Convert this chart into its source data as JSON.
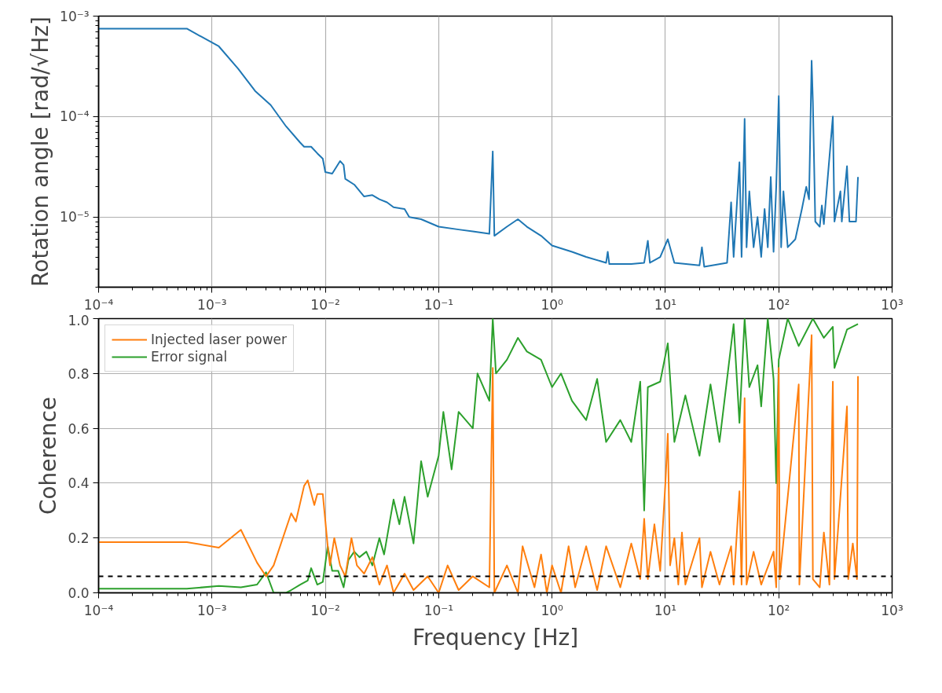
{
  "chart_data": [
    {
      "type": "line",
      "ylabel": "Rotation angle [rad/√Hz]",
      "log": "xy",
      "grid": true,
      "legend": false,
      "line_style": "solid",
      "xlim": [
        0.0001,
        1000
      ],
      "ylim": [
        2e-06,
        0.001
      ],
      "xticks": [
        {
          "value": 0.0001,
          "label": "10⁻⁴"
        },
        {
          "value": 0.001,
          "label": "10⁻³"
        },
        {
          "value": 0.01,
          "label": "10⁻²"
        },
        {
          "value": 0.1,
          "label": "10⁻¹"
        },
        {
          "value": 1,
          "label": "10⁰"
        },
        {
          "value": 10,
          "label": "10¹"
        },
        {
          "value": 100,
          "label": "10²"
        },
        {
          "value": 1000,
          "label": "10³"
        }
      ],
      "yticks": [
        {
          "value": 1e-05,
          "label": "10⁻⁵"
        },
        {
          "value": 0.0001,
          "label": "10⁻⁴"
        },
        {
          "value": 0.001,
          "label": "10⁻³"
        }
      ],
      "series": [
        {
          "color": "#1f77b4",
          "x": [
            0.0001,
            0.0006,
            0.00115,
            0.0017,
            0.0024,
            0.0033,
            0.0045,
            0.006,
            0.0065,
            0.0075,
            0.0085,
            0.0095,
            0.01,
            0.0115,
            0.0135,
            0.0145,
            0.015,
            0.018,
            0.022,
            0.026,
            0.03,
            0.035,
            0.04,
            0.05,
            0.055,
            0.07,
            0.1,
            0.15,
            0.2,
            0.28,
            0.3,
            0.31,
            0.4,
            0.5,
            0.6,
            0.8,
            1,
            1.5,
            2,
            3,
            3.1,
            3.2,
            5,
            6.5,
            7,
            7.3,
            9,
            10.5,
            12,
            20,
            21,
            22,
            35,
            38,
            40,
            45,
            47,
            50,
            52,
            55,
            60,
            65,
            70,
            75,
            80,
            85,
            90,
            95,
            100,
            105,
            110,
            120,
            140,
            160,
            175,
            185,
            195,
            200,
            210,
            230,
            240,
            250,
            300,
            310,
            350,
            360,
            400,
            420,
            480,
            500
          ],
          "values": [
            0.00075,
            0.00075,
            0.0005,
            0.0003,
            0.00018,
            0.00013,
            8e-05,
            5.5e-05,
            5e-05,
            5e-05,
            4.3e-05,
            3.8e-05,
            2.8e-05,
            2.7e-05,
            3.6e-05,
            3.3e-05,
            2.4e-05,
            2.1e-05,
            1.6e-05,
            1.65e-05,
            1.5e-05,
            1.4e-05,
            1.25e-05,
            1.2e-05,
            1e-05,
            9.5e-06,
            8e-06,
            7.5e-06,
            7.2e-06,
            6.8e-06,
            4.5e-05,
            6.5e-06,
            8e-06,
            9.5e-06,
            8e-06,
            6.5e-06,
            5.2e-06,
            4.5e-06,
            4e-06,
            3.5e-06,
            4.5e-06,
            3.4e-06,
            3.4e-06,
            3.5e-06,
            5.8e-06,
            3.5e-06,
            4e-06,
            6e-06,
            3.5e-06,
            3.3e-06,
            5e-06,
            3.2e-06,
            3.5e-06,
            1.4e-05,
            4e-06,
            3.5e-05,
            4e-06,
            9.5e-05,
            5e-06,
            1.8e-05,
            5e-06,
            1e-05,
            4e-06,
            1.2e-05,
            5e-06,
            2.5e-05,
            4.5e-06,
            2e-05,
            0.00016,
            5e-06,
            1.8e-05,
            5e-06,
            6e-06,
            1.2e-05,
            2e-05,
            1.5e-05,
            0.00036,
            0.00014,
            9e-06,
            8e-06,
            1.3e-05,
            8.5e-06,
            0.0001,
            9e-06,
            1.8e-05,
            9e-06,
            3.2e-05,
            9e-06,
            9e-06,
            2.5e-05
          ]
        }
      ]
    },
    {
      "type": "line",
      "xlabel": "Frequency [Hz]",
      "ylabel": "Coherence",
      "log": "x",
      "grid": true,
      "legend": "top left",
      "line_style": "solid",
      "xlim": [
        0.0001,
        1000
      ],
      "ylim": [
        0,
        1
      ],
      "xticks": [
        {
          "value": 0.0001,
          "label": "10⁻⁴"
        },
        {
          "value": 0.001,
          "label": "10⁻³"
        },
        {
          "value": 0.01,
          "label": "10⁻²"
        },
        {
          "value": 0.1,
          "label": "10⁻¹"
        },
        {
          "value": 1,
          "label": "10⁰"
        },
        {
          "value": 10,
          "label": "10¹"
        },
        {
          "value": 100,
          "label": "10²"
        },
        {
          "value": 1000,
          "label": "10³"
        }
      ],
      "yticks": [
        {
          "value": 0,
          "label": "0.0"
        },
        {
          "value": 0.2,
          "label": "0.2"
        },
        {
          "value": 0.4,
          "label": "0.4"
        },
        {
          "value": 0.6,
          "label": "0.6"
        },
        {
          "value": 0.8,
          "label": "0.8"
        },
        {
          "value": 1,
          "label": "1.0"
        }
      ],
      "ref_lines": [
        {
          "axis": "y",
          "value": 0.06,
          "color": "#000000",
          "line_style": "dashed"
        }
      ],
      "series": [
        {
          "name": "Injected laser power",
          "color": "#ff7f0e",
          "x": [
            0.0001,
            0.0006,
            0.00115,
            0.0018,
            0.0025,
            0.003,
            0.0035,
            0.005,
            0.0055,
            0.0065,
            0.007,
            0.008,
            0.0085,
            0.0095,
            0.0105,
            0.011,
            0.012,
            0.0135,
            0.015,
            0.017,
            0.019,
            0.022,
            0.026,
            0.03,
            0.035,
            0.04,
            0.05,
            0.06,
            0.08,
            0.1,
            0.12,
            0.15,
            0.2,
            0.28,
            0.3,
            0.31,
            0.4,
            0.5,
            0.55,
            0.7,
            0.8,
            0.9,
            1,
            1.2,
            1.4,
            1.6,
            2,
            2.5,
            3,
            4,
            5,
            6,
            6.5,
            7,
            8,
            9,
            10,
            10.5,
            11,
            12,
            13,
            14,
            15,
            20,
            21,
            25,
            30,
            38,
            40,
            45,
            47,
            50,
            52,
            60,
            70,
            90,
            95,
            100,
            102,
            150,
            152,
            195,
            200,
            230,
            250,
            280,
            300,
            310,
            400,
            410,
            450,
            490,
            500
          ],
          "values": [
            0.185,
            0.185,
            0.165,
            0.23,
            0.11,
            0.06,
            0.1,
            0.29,
            0.26,
            0.39,
            0.41,
            0.32,
            0.36,
            0.36,
            0.17,
            0.1,
            0.2,
            0.1,
            0.06,
            0.2,
            0.1,
            0.07,
            0.13,
            0.03,
            0.1,
            0.0,
            0.07,
            0.01,
            0.06,
            0.0,
            0.1,
            0.01,
            0.06,
            0.02,
            0.82,
            0.0,
            0.1,
            0.0,
            0.17,
            0.02,
            0.14,
            0.0,
            0.1,
            0.0,
            0.17,
            0.02,
            0.17,
            0.01,
            0.17,
            0.02,
            0.18,
            0.05,
            0.27,
            0.05,
            0.25,
            0.08,
            0.4,
            0.58,
            0.1,
            0.2,
            0.03,
            0.22,
            0.03,
            0.2,
            0.02,
            0.15,
            0.03,
            0.17,
            0.03,
            0.37,
            0.03,
            0.71,
            0.03,
            0.15,
            0.03,
            0.15,
            0.02,
            0.82,
            0.05,
            0.76,
            0.03,
            0.94,
            0.05,
            0.02,
            0.22,
            0.03,
            0.77,
            0.05,
            0.68,
            0.05,
            0.18,
            0.05,
            0.79
          ]
        },
        {
          "name": "Error signal",
          "color": "#2ca02c",
          "x": [
            0.0001,
            0.0006,
            0.00115,
            0.0018,
            0.0025,
            0.003,
            0.0035,
            0.0045,
            0.005,
            0.006,
            0.007,
            0.0075,
            0.0085,
            0.0095,
            0.0105,
            0.0115,
            0.013,
            0.0145,
            0.016,
            0.018,
            0.02,
            0.023,
            0.026,
            0.03,
            0.033,
            0.04,
            0.045,
            0.05,
            0.06,
            0.07,
            0.08,
            0.1,
            0.11,
            0.13,
            0.15,
            0.2,
            0.22,
            0.28,
            0.3,
            0.32,
            0.4,
            0.5,
            0.6,
            0.8,
            1,
            1.2,
            1.5,
            2,
            2.5,
            3,
            4,
            5,
            6,
            6.5,
            7,
            9,
            10.5,
            12,
            15,
            20,
            25,
            30,
            35,
            40,
            45,
            50,
            55,
            65,
            70,
            80,
            90,
            95,
            100,
            120,
            150,
            200,
            250,
            300,
            310,
            400,
            500
          ],
          "values": [
            0.015,
            0.015,
            0.025,
            0.02,
            0.03,
            0.075,
            0.0,
            0.0,
            0.01,
            0.03,
            0.045,
            0.09,
            0.03,
            0.04,
            0.17,
            0.08,
            0.08,
            0.02,
            0.12,
            0.15,
            0.13,
            0.15,
            0.1,
            0.2,
            0.14,
            0.34,
            0.25,
            0.35,
            0.18,
            0.48,
            0.35,
            0.5,
            0.66,
            0.45,
            0.66,
            0.6,
            0.8,
            0.7,
            1.0,
            0.8,
            0.85,
            0.93,
            0.88,
            0.85,
            0.75,
            0.8,
            0.7,
            0.63,
            0.78,
            0.55,
            0.63,
            0.55,
            0.77,
            0.3,
            0.75,
            0.77,
            0.91,
            0.55,
            0.72,
            0.5,
            0.76,
            0.55,
            0.78,
            0.98,
            0.62,
            1.0,
            0.75,
            0.83,
            0.68,
            1.0,
            0.78,
            0.4,
            0.85,
            1.0,
            0.9,
            1.0,
            0.93,
            0.97,
            0.82,
            0.96,
            0.98
          ]
        }
      ]
    }
  ]
}
